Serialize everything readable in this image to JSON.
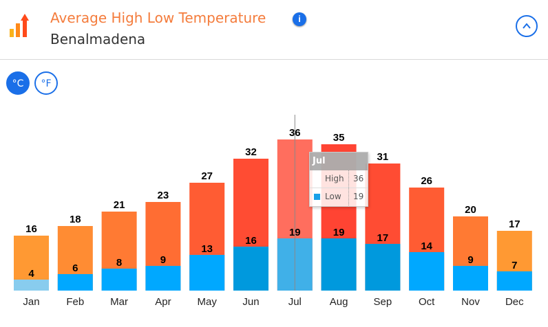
{
  "header": {
    "title": "Average High Low Temperature",
    "subtitle": "Benalmadena",
    "info_icon": "info-icon",
    "collapse_icon": "chevron-up-icon"
  },
  "units": {
    "celsius": "°C",
    "fahrenheit": "°F",
    "selected": "celsius"
  },
  "tooltip": {
    "month": "Jul",
    "high_label": "High",
    "high_value": "36",
    "low_label": "Low",
    "low_value": "19"
  },
  "colors": {
    "accent": "#1a6fe8",
    "title": "#f47c3c",
    "low": "#00a8ff"
  },
  "chart_data": {
    "type": "bar",
    "categories": [
      "Jan",
      "Feb",
      "Mar",
      "Apr",
      "May",
      "Jun",
      "Jul",
      "Aug",
      "Sep",
      "Oct",
      "Nov",
      "Dec"
    ],
    "series": [
      {
        "name": "High",
        "values": [
          16,
          18,
          21,
          23,
          27,
          32,
          36,
          35,
          31,
          26,
          20,
          17
        ],
        "colors": [
          "#ff9933",
          "#ff8c33",
          "#ff7a33",
          "#ff6d33",
          "#ff5c33",
          "#ff4c33",
          "#ff6e5e",
          "#ff4433",
          "#ff4c33",
          "#ff5c33",
          "#ff7a33",
          "#ff9933"
        ]
      },
      {
        "name": "Low",
        "values": [
          4,
          6,
          8,
          9,
          13,
          16,
          19,
          19,
          17,
          14,
          9,
          7
        ],
        "colors": [
          "#88ccee",
          "#00a8ff",
          "#00a8ff",
          "#00a8ff",
          "#00a8ff",
          "#0099dd",
          "#40b0e8",
          "#0099dd",
          "#0099dd",
          "#00a8ff",
          "#00a8ff",
          "#00a8ff"
        ]
      }
    ],
    "data_labels": true,
    "grid": false,
    "highlighted": "Jul"
  }
}
